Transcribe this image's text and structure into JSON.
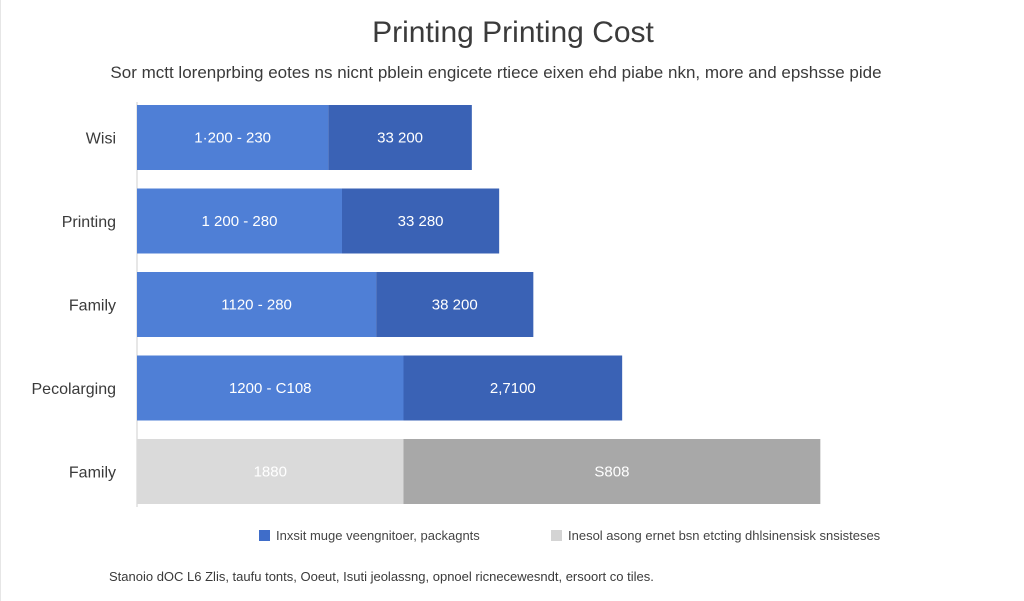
{
  "chart_data": {
    "type": "bar",
    "orientation": "horizontal",
    "stacked": true,
    "title": "Printing Printing Cost",
    "subtitle": "Sor mctt lorenprbing eotes ns nicnt pblein engicete rtiece eixen ehd piabe nkn, more and epshsse pide",
    "categories": [
      "Wisi",
      "Printing",
      "Family",
      "Pecolarging",
      "Family"
    ],
    "series": [
      {
        "name": "Inxsit muge veengnitoer, packagnts",
        "values": [
          1400,
          1500,
          1750,
          1950,
          1950
        ],
        "labels": [
          "1·200 - 230",
          "1 200 - 280",
          "1120 - 280",
          "1200 - C108",
          "1880"
        ]
      },
      {
        "name": "Inesol asong ernet bsn etcting dhlsinensisk snsisteses",
        "values": [
          1050,
          1150,
          1150,
          1600,
          3050
        ],
        "labels": [
          "33 200",
          "33 280",
          "38 200",
          "2,7100",
          "S808"
        ]
      }
    ],
    "series_colors": {
      "colored": [
        "#4f7fd6",
        "#3a62b5"
      ],
      "muted": [
        "#dadada",
        "#a8a8a8"
      ]
    },
    "muted_rows": [
      4
    ],
    "legend_position": "bottom",
    "grid": false,
    "xlim": [
      0,
      6000
    ]
  },
  "legend": {
    "items": [
      {
        "label": "Inxsit muge veengnitoer, packagnts",
        "color": "#3f6dc9"
      },
      {
        "label": "Inesol asong ernet bsn etcting dhlsinensisk snsisteses",
        "color": "#d4d4d4"
      }
    ]
  },
  "footer": {
    "text": "Stanoio dOC L6 Zlis, taufu tonts, Ooeut, Isuti jeolassng, opnoel ricnecewesndt, ersoort co tiles."
  }
}
